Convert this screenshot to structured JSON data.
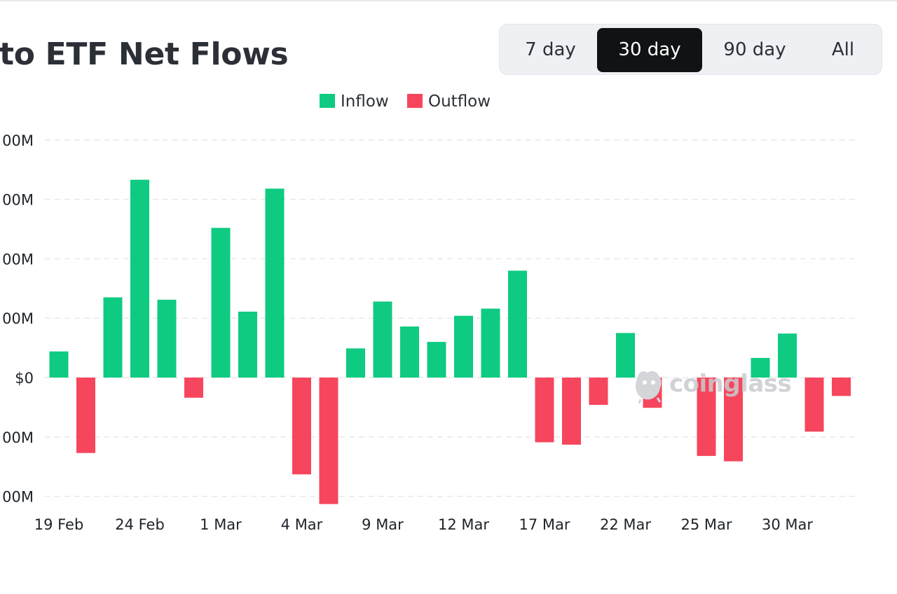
{
  "title": "to ETF Net Flows",
  "range_tabs": [
    {
      "label": "7 day",
      "active": false
    },
    {
      "label": "30 day",
      "active": true
    },
    {
      "label": "90 day",
      "active": false
    },
    {
      "label": "All",
      "active": false
    }
  ],
  "legend": {
    "inflow_label": "Inflow",
    "outflow_label": "Outflow"
  },
  "colors": {
    "inflow": "#0ecb81",
    "outflow": "#f6465d",
    "grid": "#e6e8ea",
    "text": "#1e2329"
  },
  "watermark": {
    "text": "coinglass",
    "icon": "coinglass-logo-icon"
  },
  "chart_data": {
    "type": "bar",
    "y_tick_labels": [
      "00M",
      "00M",
      "00M",
      "00M",
      "$0",
      "00M",
      "00M"
    ],
    "y_tick_values": [
      400,
      300,
      200,
      100,
      0,
      -100,
      -200
    ],
    "ylim": [
      -200,
      400
    ],
    "x_tick_labels": [
      "19 Feb",
      "24 Feb",
      "1 Mar",
      "4 Mar",
      "9 Mar",
      "12 Mar",
      "17 Mar",
      "22 Mar",
      "25 Mar",
      "30 Mar"
    ],
    "x_tick_indices": [
      0,
      3,
      6,
      9,
      12,
      15,
      18,
      21,
      24,
      27
    ],
    "values": [
      44,
      -127,
      135,
      333,
      131,
      -34,
      252,
      111,
      318,
      -163,
      -213,
      49,
      128,
      86,
      60,
      104,
      116,
      180,
      -109,
      -113,
      -46,
      75,
      -51,
      0,
      -132,
      -141,
      33,
      74,
      -91,
      -31
    ],
    "grid": true,
    "legend_position": "top-center"
  }
}
